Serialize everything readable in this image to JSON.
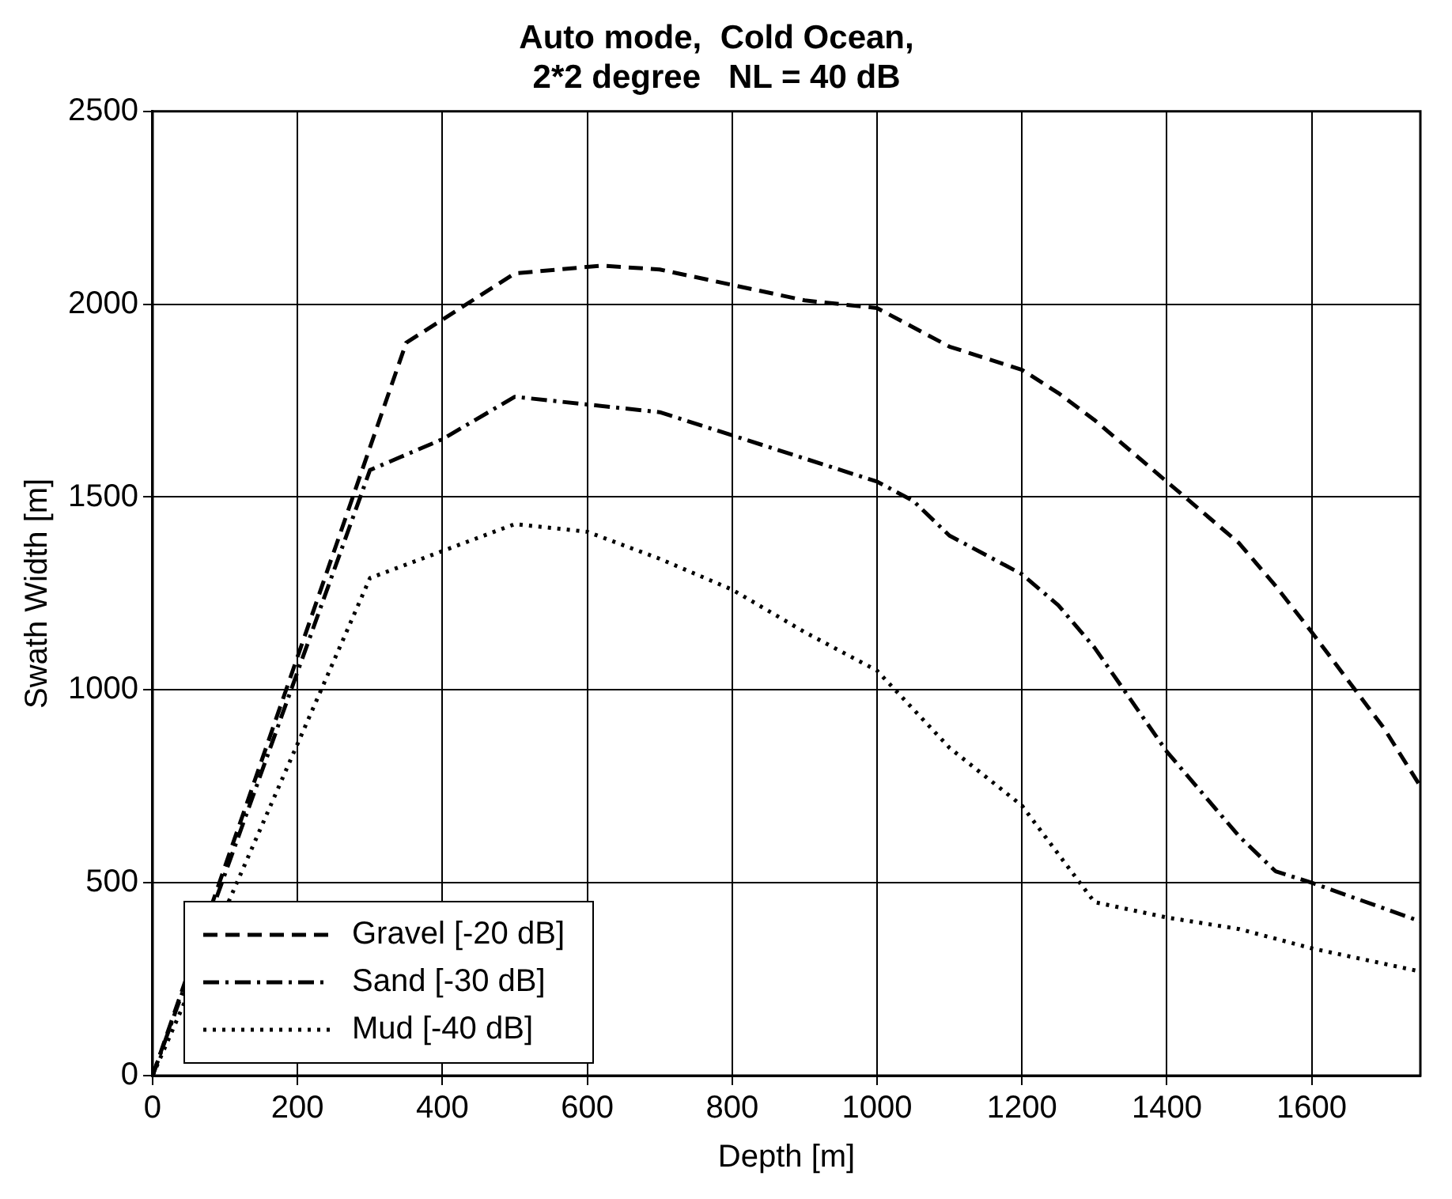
{
  "chart_data": {
    "type": "line",
    "title": [
      "Auto mode,  Cold Ocean,",
      "2*2 degree   NL = 40 dB"
    ],
    "xlabel": "Depth [m]",
    "ylabel": "Swath Width [m]",
    "xlim": [
      0,
      1750
    ],
    "xticks": [
      0,
      200,
      400,
      600,
      800,
      1000,
      1200,
      1400,
      1600
    ],
    "ylim": [
      0,
      2500
    ],
    "yticks": [
      0,
      500,
      1000,
      1500,
      2000,
      2500
    ],
    "grid": true,
    "legend": "bottom left",
    "marker": "none",
    "series": [
      {
        "name": "Gravel [-20 dB]",
        "color": "#000000",
        "line_style": "dashed",
        "x": [
          0,
          350,
          500,
          620,
          700,
          800,
          900,
          1000,
          1100,
          1200,
          1250,
          1300,
          1400,
          1500,
          1550,
          1600,
          1700,
          1750
        ],
        "values": [
          0,
          1900,
          2080,
          2100,
          2090,
          2050,
          2010,
          1990,
          1890,
          1830,
          1770,
          1700,
          1540,
          1380,
          1270,
          1150,
          900,
          750
        ]
      },
      {
        "name": "Sand [-30 dB]",
        "color": "#000000",
        "line_style": "dashdot",
        "x": [
          0,
          300,
          400,
          500,
          600,
          700,
          800,
          900,
          1000,
          1050,
          1100,
          1200,
          1250,
          1300,
          1400,
          1500,
          1550,
          1600,
          1750
        ],
        "values": [
          0,
          1570,
          1650,
          1760,
          1740,
          1720,
          1660,
          1600,
          1540,
          1490,
          1400,
          1300,
          1220,
          1110,
          840,
          620,
          530,
          500,
          400
        ]
      },
      {
        "name": "Mud [-40 dB]",
        "color": "#000000",
        "line_style": "dotted",
        "x": [
          0,
          300,
          400,
          500,
          600,
          700,
          800,
          900,
          1000,
          1100,
          1200,
          1300,
          1400,
          1500,
          1600,
          1750
        ],
        "values": [
          0,
          1290,
          1360,
          1430,
          1410,
          1340,
          1260,
          1150,
          1050,
          850,
          700,
          450,
          410,
          380,
          330,
          270
        ]
      }
    ]
  }
}
